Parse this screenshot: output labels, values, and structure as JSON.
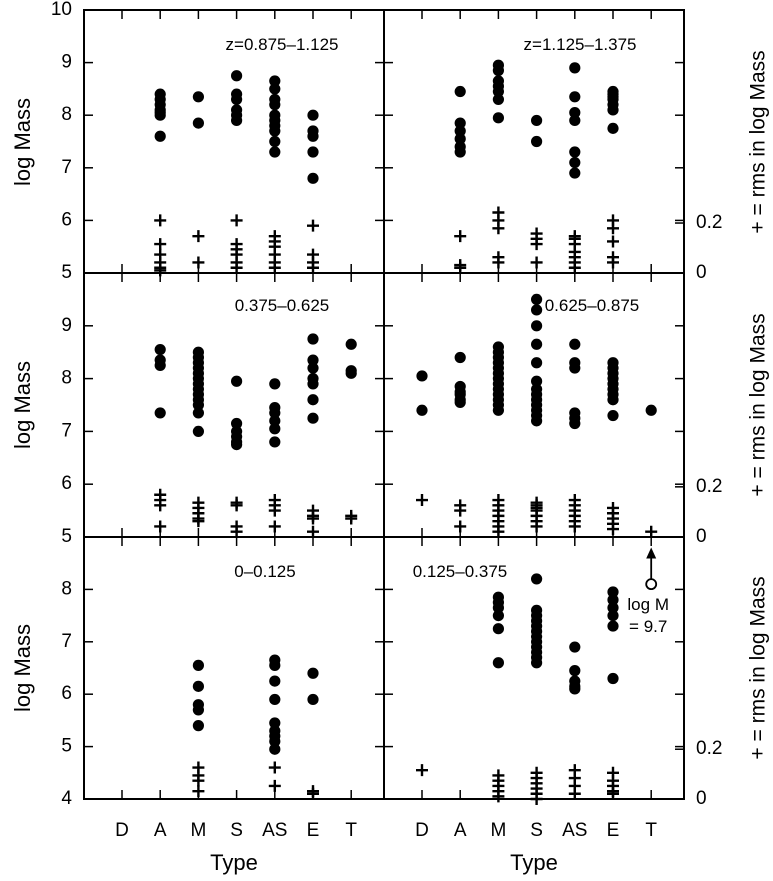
{
  "chart_data": {
    "type": "scatter",
    "xlabel": "Type",
    "ylabel": "log Mass",
    "right_label": "+ = rms in log Mass",
    "categories": [
      "D",
      "A",
      "M",
      "S",
      "AS",
      "E",
      "T"
    ],
    "legend": {
      "cross": "+",
      "meaning": "rms in log Mass"
    },
    "rows": [
      {
        "ylim": [
          5,
          10
        ],
        "yticks": [
          "5",
          "6",
          "7",
          "8",
          "9",
          "10"
        ],
        "rms_ticks": [
          {
            "label": "0",
            "value": 5
          },
          {
            "label": "0.2",
            "value": 5.95
          }
        ]
      },
      {
        "ylim": [
          5,
          10
        ],
        "yticks": [
          "5",
          "6",
          "7",
          "8",
          "9"
        ],
        "rms_ticks": [
          {
            "label": "0",
            "value": 5
          },
          {
            "label": "0.2",
            "value": 5.95
          }
        ]
      },
      {
        "ylim": [
          4,
          9
        ],
        "yticks": [
          "4",
          "5",
          "6",
          "7",
          "8"
        ],
        "rms_ticks": [
          {
            "label": "0",
            "value": 4
          },
          {
            "label": "0.2",
            "value": 4.95
          }
        ]
      }
    ],
    "panels": [
      {
        "label": "z=0.875–1.125",
        "row": 0,
        "col": 0,
        "dots": [
          {
            "category": "A",
            "values": [
              8.4,
              8.3,
              8.2,
              8.1,
              8.05,
              8.0,
              7.6
            ]
          },
          {
            "category": "M",
            "values": [
              8.35,
              7.85
            ]
          },
          {
            "category": "S",
            "values": [
              8.75,
              8.4,
              8.3,
              8.1,
              8.0,
              7.9
            ]
          },
          {
            "category": "AS",
            "values": [
              8.65,
              8.5,
              8.3,
              8.2,
              8.0,
              7.9,
              7.8,
              7.7,
              7.5,
              7.3
            ]
          },
          {
            "category": "E",
            "values": [
              8.0,
              7.7,
              7.6,
              7.3,
              6.8
            ]
          }
        ],
        "crosses": [
          {
            "category": "A",
            "values": [
              6.0,
              5.55,
              5.35,
              5.2,
              5.1,
              5.05
            ]
          },
          {
            "category": "M",
            "values": [
              5.7,
              5.2
            ]
          },
          {
            "category": "S",
            "values": [
              6.0,
              5.55,
              5.45,
              5.35,
              5.2,
              5.1
            ]
          },
          {
            "category": "AS",
            "values": [
              5.7,
              5.6,
              5.5,
              5.35,
              5.2,
              5.1
            ]
          },
          {
            "category": "E",
            "values": [
              5.9,
              5.35,
              5.2,
              5.1
            ]
          }
        ]
      },
      {
        "label": "z=1.125–1.375",
        "row": 0,
        "col": 1,
        "dots": [
          {
            "category": "A",
            "values": [
              8.45,
              7.85,
              7.7,
              7.55,
              7.4,
              7.3
            ]
          },
          {
            "category": "M",
            "values": [
              8.95,
              8.85,
              8.65,
              8.55,
              8.45,
              8.3,
              7.95
            ]
          },
          {
            "category": "S",
            "values": [
              7.9,
              7.5
            ]
          },
          {
            "category": "AS",
            "values": [
              8.9,
              8.35,
              8.05,
              7.9,
              7.3,
              7.1,
              6.9
            ]
          },
          {
            "category": "E",
            "values": [
              8.45,
              8.4,
              8.35,
              8.3,
              8.2,
              8.1,
              7.75
            ]
          }
        ],
        "crosses": [
          {
            "category": "A",
            "values": [
              5.7,
              5.15,
              5.1
            ]
          },
          {
            "category": "M",
            "values": [
              6.15,
              6.0,
              5.85,
              5.3,
              5.2
            ]
          },
          {
            "category": "S",
            "values": [
              5.75,
              5.65,
              5.55,
              5.2
            ]
          },
          {
            "category": "AS",
            "values": [
              5.7,
              5.65,
              5.55,
              5.4,
              5.3,
              5.2,
              5.1
            ]
          },
          {
            "category": "E",
            "values": [
              6.0,
              5.85,
              5.6,
              5.3,
              5.2
            ]
          }
        ]
      },
      {
        "label": "0.375–0.625",
        "row": 1,
        "col": 0,
        "dots": [
          {
            "category": "A",
            "values": [
              8.55,
              8.35,
              8.25,
              7.35
            ]
          },
          {
            "category": "M",
            "values": [
              8.5,
              8.4,
              8.3,
              8.2,
              8.1,
              8.0,
              7.9,
              7.8,
              7.7,
              7.6,
              7.5,
              7.35,
              7.0
            ]
          },
          {
            "category": "S",
            "values": [
              7.95,
              7.15,
              7.0,
              6.9,
              6.8,
              6.75
            ]
          },
          {
            "category": "AS",
            "values": [
              7.9,
              7.45,
              7.35,
              7.2,
              7.05,
              6.8
            ]
          },
          {
            "category": "E",
            "values": [
              8.75,
              8.35,
              8.2,
              8.0,
              7.9,
              7.6,
              7.25
            ]
          },
          {
            "category": "T",
            "values": [
              8.65,
              8.15,
              8.1
            ]
          }
        ],
        "crosses": [
          {
            "category": "A",
            "values": [
              5.8,
              5.7,
              5.6,
              5.2
            ]
          },
          {
            "category": "M",
            "values": [
              5.65,
              5.55,
              5.45,
              5.35,
              5.3
            ]
          },
          {
            "category": "S",
            "values": [
              5.65,
              5.6,
              5.2,
              5.1
            ]
          },
          {
            "category": "AS",
            "values": [
              5.7,
              5.6,
              5.5,
              5.2
            ]
          },
          {
            "category": "E",
            "values": [
              5.5,
              5.4,
              5.35,
              5.1
            ]
          },
          {
            "category": "T",
            "values": [
              5.4,
              5.35
            ]
          }
        ]
      },
      {
        "label": "0.625–0.875",
        "row": 1,
        "col": 1,
        "dots": [
          {
            "category": "D",
            "values": [
              8.05,
              7.4
            ]
          },
          {
            "category": "A",
            "values": [
              8.4,
              7.85,
              7.75,
              7.7,
              7.6,
              7.55
            ]
          },
          {
            "category": "M",
            "values": [
              8.6,
              8.5,
              8.4,
              8.3,
              8.2,
              8.1,
              8.0,
              7.9,
              7.8,
              7.7,
              7.6,
              7.5,
              7.4
            ]
          },
          {
            "category": "S",
            "values": [
              9.5,
              9.3,
              9.0,
              8.65,
              8.3,
              7.95,
              7.8,
              7.7,
              7.6,
              7.5,
              7.4,
              7.3,
              7.2
            ]
          },
          {
            "category": "AS",
            "values": [
              8.65,
              8.3,
              8.2,
              7.35,
              7.25,
              7.15
            ]
          },
          {
            "category": "E",
            "values": [
              8.3,
              8.2,
              8.1,
              8.0,
              7.9,
              7.8,
              7.7,
              7.6,
              7.3
            ]
          },
          {
            "category": "T",
            "values": [
              7.4
            ]
          }
        ],
        "crosses": [
          {
            "category": "D",
            "values": [
              5.7
            ]
          },
          {
            "category": "A",
            "values": [
              5.6,
              5.5,
              5.2
            ]
          },
          {
            "category": "M",
            "values": [
              5.7,
              5.6,
              5.5,
              5.4,
              5.3,
              5.2,
              5.1
            ]
          },
          {
            "category": "S",
            "values": [
              5.65,
              5.6,
              5.55,
              5.5,
              5.4,
              5.3,
              5.2
            ]
          },
          {
            "category": "AS",
            "values": [
              5.7,
              5.6,
              5.5,
              5.4,
              5.3,
              5.2
            ]
          },
          {
            "category": "E",
            "values": [
              5.55,
              5.45,
              5.35,
              5.25,
              5.15
            ]
          },
          {
            "category": "T",
            "values": [
              5.1
            ]
          }
        ]
      },
      {
        "label": "0–0.125",
        "row": 2,
        "col": 0,
        "dots": [
          {
            "category": "M",
            "values": [
              6.55,
              6.15,
              5.8,
              5.7,
              5.4
            ]
          },
          {
            "category": "AS",
            "values": [
              6.65,
              6.55,
              6.25,
              5.9,
              5.45,
              5.3,
              5.2,
              5.1,
              4.95
            ]
          },
          {
            "category": "E",
            "values": [
              6.4,
              5.9
            ]
          }
        ],
        "crosses": [
          {
            "category": "M",
            "values": [
              4.6,
              4.45,
              4.35,
              4.15
            ]
          },
          {
            "category": "AS",
            "values": [
              4.6,
              4.25
            ]
          },
          {
            "category": "E",
            "values": [
              4.15,
              4.1
            ]
          }
        ]
      },
      {
        "label": "0.125–0.375",
        "row": 2,
        "col": 1,
        "dots": [
          {
            "category": "M",
            "values": [
              7.85,
              7.75,
              7.65,
              7.5,
              7.25,
              6.6
            ]
          },
          {
            "category": "S",
            "values": [
              8.2,
              7.6,
              7.5,
              7.4,
              7.3,
              7.2,
              7.1,
              7.0,
              6.9,
              6.8,
              6.7,
              6.6
            ]
          },
          {
            "category": "AS",
            "values": [
              6.9,
              6.45,
              6.25,
              6.15,
              6.1
            ]
          },
          {
            "category": "E",
            "values": [
              7.95,
              7.8,
              7.65,
              7.5,
              7.3,
              6.3
            ]
          }
        ],
        "crosses": [
          {
            "category": "D",
            "values": [
              4.55
            ]
          },
          {
            "category": "M",
            "values": [
              4.45,
              4.35,
              4.25,
              4.15,
              4.05
            ]
          },
          {
            "category": "S",
            "values": [
              4.5,
              4.4,
              4.3,
              4.2,
              4.1,
              4.0
            ]
          },
          {
            "category": "AS",
            "values": [
              4.55,
              4.4,
              4.25,
              4.1
            ]
          },
          {
            "category": "E",
            "values": [
              4.5,
              4.35,
              4.25,
              4.15,
              4.1
            ]
          }
        ],
        "note": {
          "category": "T",
          "line1": "log M",
          "line2": "= 9.7",
          "value_top": 8.8,
          "value_bottom": 8.1
        }
      }
    ]
  }
}
